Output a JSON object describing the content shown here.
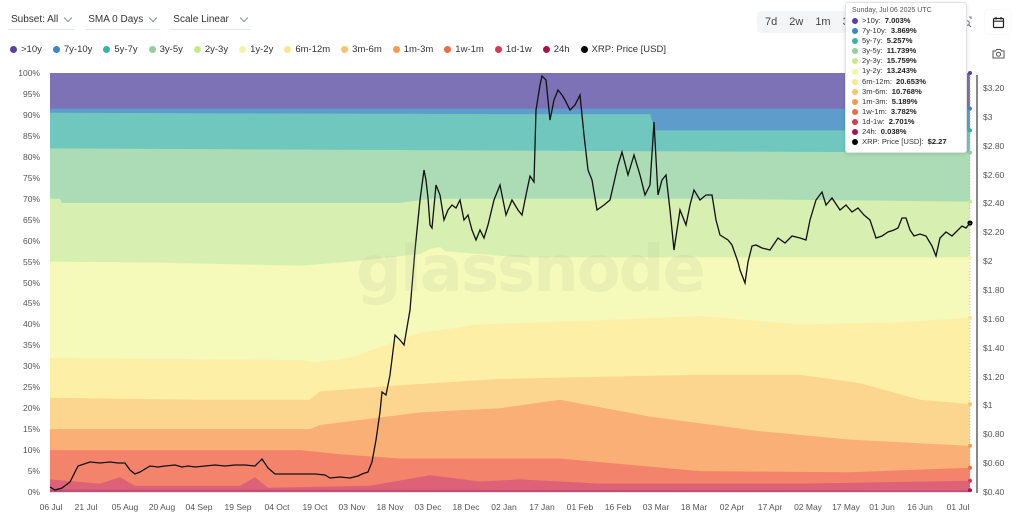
{
  "toolbar": {
    "subset": "Subset: All",
    "sma": "SMA 0 Days",
    "scale": "Scale Linear"
  },
  "ranges": [
    "7d",
    "2w",
    "1m",
    "3m"
  ],
  "icons": {
    "zoom": "zoom-select-icon",
    "calendar": "calendar-icon",
    "camera": "camera-icon"
  },
  "legend": [
    {
      "label": ">10y",
      "color": "#5b3fa6"
    },
    {
      "label": "7y-10y",
      "color": "#3a86c7"
    },
    {
      "label": "5y-7y",
      "color": "#35b3a8"
    },
    {
      "label": "3y-5y",
      "color": "#8fd19e"
    },
    {
      "label": "2y-3y",
      "color": "#c6ea8a"
    },
    {
      "label": "1y-2y",
      "color": "#f2f7a8"
    },
    {
      "label": "6m-12m",
      "color": "#fde58a"
    },
    {
      "label": "3m-6m",
      "color": "#fbc36a"
    },
    {
      "label": "1m-3m",
      "color": "#f79a4e"
    },
    {
      "label": "1w-1m",
      "color": "#f06a45"
    },
    {
      "label": "1d-1w",
      "color": "#d93952"
    },
    {
      "label": "24h",
      "color": "#a8124a"
    },
    {
      "label": "XRP: Price [USD]",
      "color": "#000000"
    }
  ],
  "tooltip": {
    "date": "Sunday, Jul 06 2025 UTC",
    "rows": [
      {
        "label": ">10y:",
        "value": "7.003%",
        "color": "#5b3fa6"
      },
      {
        "label": "7y-10y:",
        "value": "3.869%",
        "color": "#3a86c7"
      },
      {
        "label": "5y-7y:",
        "value": "5.257%",
        "color": "#35b3a8"
      },
      {
        "label": "3y-5y:",
        "value": "11.739%",
        "color": "#8fd19e"
      },
      {
        "label": "2y-3y:",
        "value": "15.759%",
        "color": "#c6ea8a"
      },
      {
        "label": "1y-2y:",
        "value": "13.243%",
        "color": "#f2f7a8"
      },
      {
        "label": "6m-12m:",
        "value": "20.653%",
        "color": "#fde58a"
      },
      {
        "label": "3m-6m:",
        "value": "10.768%",
        "color": "#fbc36a"
      },
      {
        "label": "1m-3m:",
        "value": "5.189%",
        "color": "#f79a4e"
      },
      {
        "label": "1w-1m:",
        "value": "3.782%",
        "color": "#f06a45"
      },
      {
        "label": "1d-1w:",
        "value": "2.701%",
        "color": "#d93952"
      },
      {
        "label": "24h:",
        "value": "0.038%",
        "color": "#a8124a"
      },
      {
        "label": "XRP: Price [USD]:",
        "value": "$2.27",
        "color": "#000000"
      }
    ]
  },
  "watermark": "glassnode",
  "chart_data": {
    "type": "area",
    "title": "",
    "stacked": true,
    "normalized": true,
    "xlabel": "",
    "ylabel": "",
    "ylim": [
      0,
      100
    ],
    "y2lim": [
      0.4,
      3.2
    ],
    "grid": false,
    "legend_position": "top",
    "x_tick_labels": [
      "06 Jul",
      "21 Jul",
      "05 Aug",
      "20 Aug",
      "04 Sep",
      "19 Sep",
      "04 Oct",
      "19 Oct",
      "03 Nov",
      "18 Nov",
      "03 Dec",
      "18 Dec",
      "02 Jan",
      "17 Jan",
      "01 Feb",
      "16 Feb",
      "03 Mar",
      "18 Mar",
      "02 Apr",
      "17 Apr",
      "02 May",
      "17 May",
      "01 Jun",
      "16 Jun",
      "01 Jul"
    ],
    "y_tick_labels": [
      "0%",
      "5%",
      "10%",
      "15%",
      "20%",
      "25%",
      "30%",
      "35%",
      "40%",
      "45%",
      "50%",
      "55%",
      "60%",
      "65%",
      "70%",
      "75%",
      "80%",
      "85%",
      "90%",
      "95%",
      "100%"
    ],
    "y2_tick_labels": [
      "$0.40",
      "$0.60",
      "$0.80",
      "$1",
      "$1.20",
      "$1.40",
      "$1.60",
      "$1.80",
      "$2",
      "$2.20",
      "$2.40",
      "$2.60",
      "$2.80",
      "$3",
      "$3.20"
    ],
    "categories": [
      "06 Jul 2024",
      "03 Nov 2024",
      "03 Dec 2024",
      "17 Jan 2025",
      "03 Mar 2025",
      "06 Jul 2025"
    ],
    "series": [
      {
        "name": "24h",
        "values": [
          0.5,
          0.3,
          0.4,
          0.4,
          0.3,
          0.04
        ]
      },
      {
        "name": "1d-1w",
        "values": [
          2.5,
          1.8,
          3.0,
          3.0,
          2.0,
          2.7
        ]
      },
      {
        "name": "1w-1m",
        "values": [
          4.5,
          3.5,
          6.5,
          6.5,
          4.5,
          3.8
        ]
      },
      {
        "name": "1m-3m",
        "values": [
          3.8,
          5.8,
          10.0,
          7.5,
          7.0,
          5.2
        ]
      },
      {
        "name": "3m-6m",
        "values": [
          3.7,
          3.6,
          8.5,
          9.5,
          10.0,
          10.8
        ]
      },
      {
        "name": "6m-12m",
        "values": [
          17.0,
          17.0,
          15.5,
          15.5,
          20.0,
          20.7
        ]
      },
      {
        "name": "1y-2y",
        "values": [
          22.5,
          25.0,
          15.5,
          12.5,
          12.0,
          13.2
        ]
      },
      {
        "name": "2y-3y",
        "values": [
          15.5,
          15.0,
          18.0,
          16.5,
          16.0,
          15.8
        ]
      },
      {
        "name": "3y-5y",
        "values": [
          12.0,
          12.5,
          9.5,
          12.0,
          11.7,
          11.7
        ]
      },
      {
        "name": "5y-7y",
        "values": [
          8.5,
          7.2,
          5.3,
          5.3,
          5.3,
          5.3
        ]
      },
      {
        "name": "7y-10y",
        "values": [
          1.0,
          1.3,
          1.3,
          1.3,
          3.7,
          3.9
        ]
      },
      {
        "name": ">10y",
        "values": [
          8.5,
          7.0,
          7.0,
          7.0,
          7.0,
          7.0
        ]
      },
      {
        "name": "XRP: Price [USD]",
        "axis": "right",
        "values": [
          0.45,
          0.5,
          2.5,
          3.3,
          2.3,
          2.27
        ]
      }
    ]
  }
}
